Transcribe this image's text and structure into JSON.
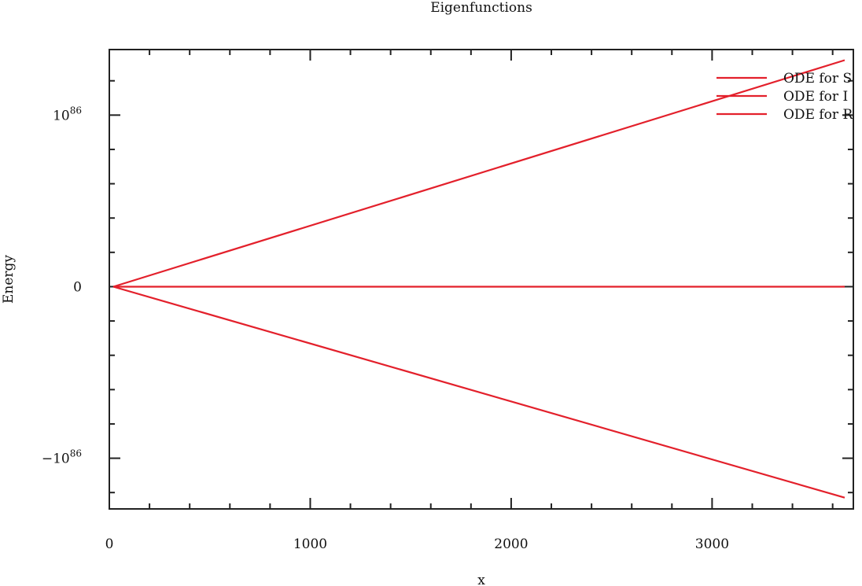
{
  "chart_data": {
    "type": "line",
    "title": "Eigenfunctions",
    "xlabel": "x",
    "ylabel": "Energy",
    "xlim": [
      0,
      3660
    ],
    "ylim": [
      -1.3e+86,
      1.35e+86
    ],
    "grid": false,
    "legend_position": "top-right",
    "x_ticks": [
      {
        "value": 0,
        "label": "0"
      },
      {
        "value": 1000,
        "label": "1000"
      },
      {
        "value": 2000,
        "label": "2000"
      },
      {
        "value": 3000,
        "label": "3000"
      }
    ],
    "x_minor_step": 200,
    "y_ticks": [
      {
        "value": 1e+86,
        "base": "10",
        "exp": "86",
        "label": "10^86"
      },
      {
        "value": 0,
        "base": "0",
        "exp": "",
        "label": "0"
      },
      {
        "value": -1e+86,
        "base": "−10",
        "exp": "86",
        "label": "−10^86"
      }
    ],
    "y_minor_step": 2e+85,
    "series": [
      {
        "name": "ODE for S",
        "color": "#e3202b",
        "x": [
          20,
          3660
        ],
        "y": [
          0,
          1.32e+86
        ]
      },
      {
        "name": "ODE for I",
        "color": "#e3202b",
        "x": [
          20,
          3660
        ],
        "y": [
          0,
          -1.23e+86
        ]
      },
      {
        "name": "ODE for R",
        "color": "#e3202b",
        "x": [
          20,
          3660
        ],
        "y": [
          0,
          0
        ]
      }
    ]
  }
}
